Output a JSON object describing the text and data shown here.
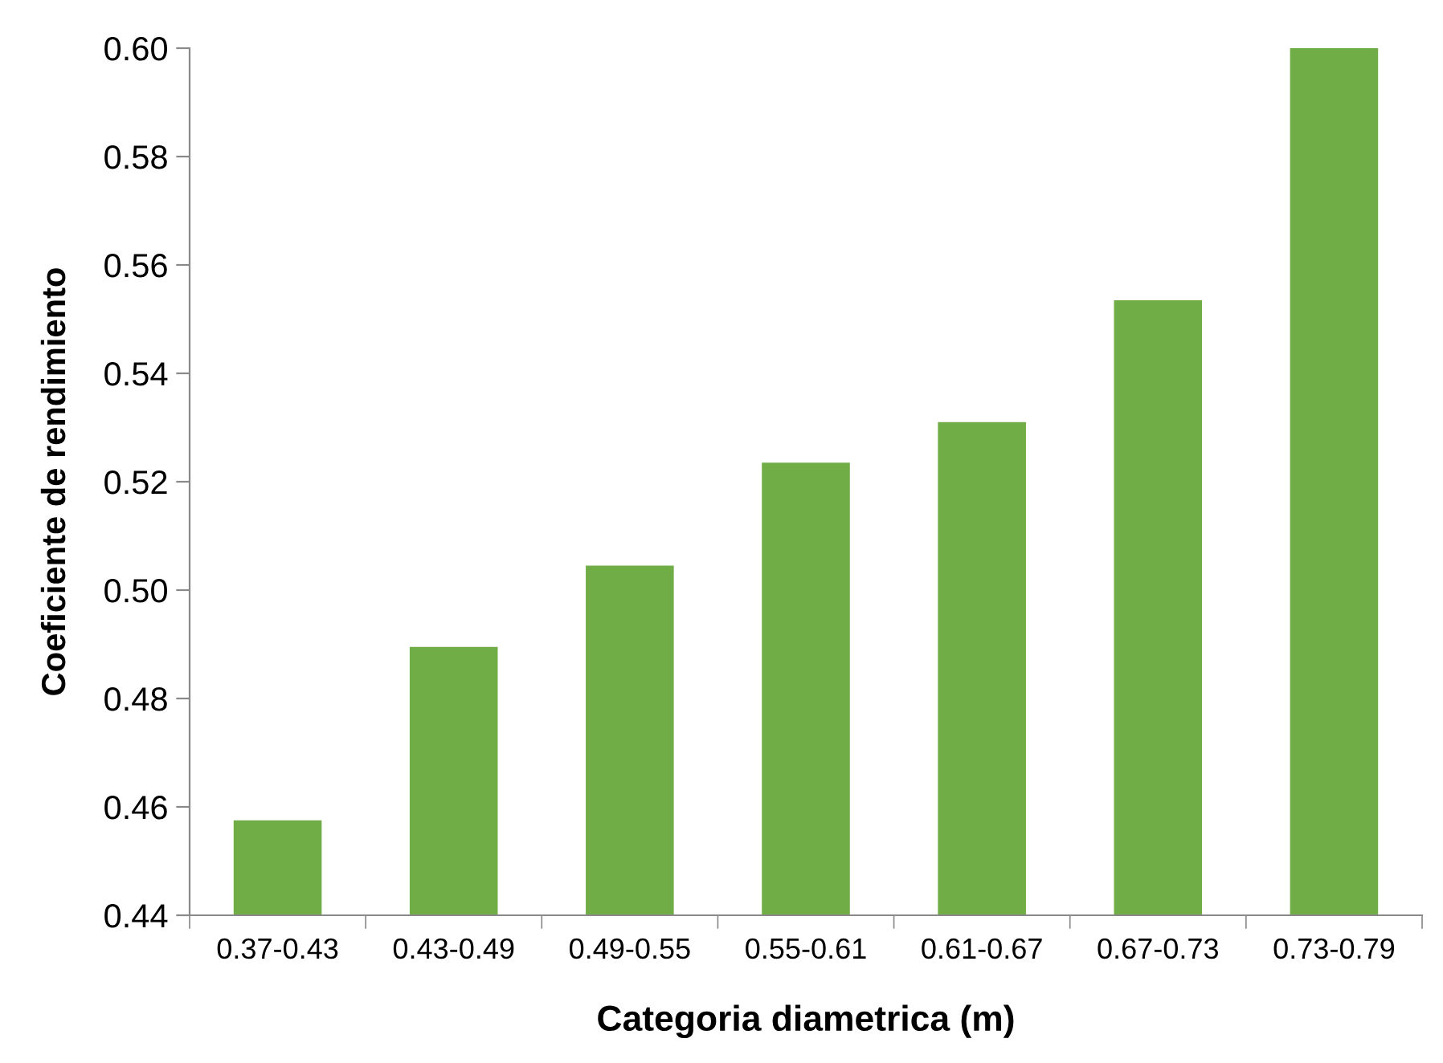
{
  "chart_data": {
    "type": "bar",
    "xlabel": "Categoria diametrica (m)",
    "ylabel": "Coeficiente de rendimiento",
    "categories": [
      "0.37-0.43",
      "0.43-0.49",
      "0.49-0.55",
      "0.55-0.61",
      "0.61-0.67",
      "0.67-0.73",
      "0.73-0.79"
    ],
    "values": [
      0.4575,
      0.4895,
      0.5045,
      0.5235,
      0.531,
      0.5535,
      0.6
    ],
    "color": "#70ad47",
    "ylim": [
      0.44,
      0.6
    ],
    "yticks": [
      {
        "value": 0.44,
        "label": "0.44"
      },
      {
        "value": 0.46,
        "label": "0.46"
      },
      {
        "value": 0.48,
        "label": "0.48"
      },
      {
        "value": 0.5,
        "label": "0.50"
      },
      {
        "value": 0.52,
        "label": "0.52"
      },
      {
        "value": 0.54,
        "label": "0.54"
      },
      {
        "value": 0.56,
        "label": "0.56"
      },
      {
        "value": 0.58,
        "label": "0.58"
      },
      {
        "value": 0.6,
        "label": "0.60"
      }
    ],
    "grid": false,
    "legend": false
  }
}
